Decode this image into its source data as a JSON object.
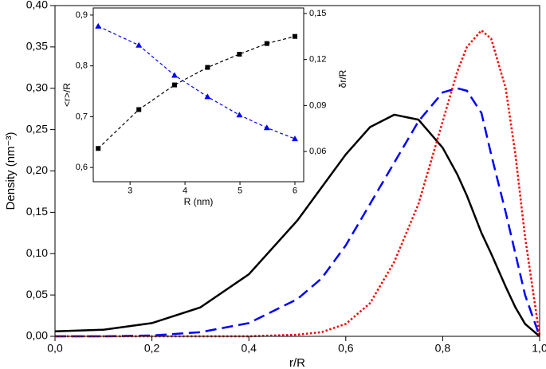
{
  "chart_data": [
    {
      "type": "line",
      "xlabel": "r/R",
      "ylabel": "Density (nm⁻³)",
      "xlim": [
        0,
        1
      ],
      "ylim": [
        0,
        0.4
      ],
      "xticks": [
        {
          "value": 0,
          "label": "0,0"
        },
        {
          "value": 0.2,
          "label": "0,2"
        },
        {
          "value": 0.4,
          "label": "0,4"
        },
        {
          "value": 0.6,
          "label": "0,6"
        },
        {
          "value": 0.8,
          "label": "0,8"
        },
        {
          "value": 1,
          "label": "1,0"
        }
      ],
      "yticks": [
        {
          "value": 0,
          "label": "0,00"
        },
        {
          "value": 0.05,
          "label": "0,05"
        },
        {
          "value": 0.1,
          "label": "0,10"
        },
        {
          "value": 0.15,
          "label": "0,15"
        },
        {
          "value": 0.2,
          "label": "0,20"
        },
        {
          "value": 0.25,
          "label": "0,25"
        },
        {
          "value": 0.3,
          "label": "0,30"
        },
        {
          "value": 0.35,
          "label": "0,35"
        },
        {
          "value": 0.4,
          "label": "0,40"
        }
      ],
      "x": [
        0,
        0.1,
        0.2,
        0.3,
        0.4,
        0.5,
        0.55,
        0.6,
        0.65,
        0.7,
        0.75,
        0.8,
        0.83,
        0.85,
        0.88,
        0.9,
        0.93,
        0.95,
        0.97,
        1.0
      ],
      "series": [
        {
          "color": "#000000",
          "style": "solid",
          "values": [
            0.006,
            0.008,
            0.016,
            0.035,
            0.075,
            0.14,
            0.18,
            0.22,
            0.253,
            0.268,
            0.262,
            0.228,
            0.196,
            0.17,
            0.125,
            0.1,
            0.06,
            0.035,
            0.015,
            0
          ]
        },
        {
          "color": "#0000ff",
          "style": "dashed",
          "values": [
            0,
            0,
            0.001,
            0.005,
            0.016,
            0.045,
            0.07,
            0.11,
            0.16,
            0.21,
            0.26,
            0.295,
            0.3,
            0.297,
            0.27,
            0.22,
            0.15,
            0.1,
            0.05,
            0
          ]
        },
        {
          "color": "#ff0000",
          "style": "dotted",
          "values": [
            0,
            0,
            0,
            0,
            0,
            0.002,
            0.005,
            0.015,
            0.04,
            0.09,
            0.16,
            0.26,
            0.32,
            0.35,
            0.37,
            0.36,
            0.3,
            0.22,
            0.12,
            0
          ]
        }
      ]
    },
    {
      "type": "line",
      "xlabel": "R (nm)",
      "ylabel": "<r>/R",
      "y2label": "δr/R",
      "xlim": [
        2.33,
        6.16
      ],
      "ylim": [
        0.572,
        0.914
      ],
      "y2lim": [
        0.0403,
        0.1536
      ],
      "xticks": [
        3,
        4,
        5,
        6
      ],
      "yticks": [
        {
          "value": 0.6,
          "label": "0,6"
        },
        {
          "value": 0.7,
          "label": "0,7"
        },
        {
          "value": 0.8,
          "label": "0,8"
        },
        {
          "value": 0.9,
          "label": "0,9"
        }
      ],
      "y2ticks": [
        {
          "value": 0.06,
          "label": "0,06"
        },
        {
          "value": 0.09,
          "label": "0,09"
        },
        {
          "value": 0.12,
          "label": "0,12"
        },
        {
          "value": 0.15,
          "label": "0,15"
        }
      ],
      "x": [
        2.42,
        3.16,
        3.81,
        4.41,
        4.99,
        5.49,
        6.0
      ],
      "series": [
        {
          "color": "#000000",
          "style": "dashed",
          "marker": "square",
          "values": [
            0.6375,
            0.714,
            0.7625,
            0.797,
            0.823,
            0.844,
            0.858
          ]
        },
        {
          "color": "#0000ff",
          "style": "dashed",
          "marker": "triangle",
          "axis": "y2",
          "values": [
            0.1417,
            0.1293,
            0.1097,
            0.0957,
            0.0838,
            0.0755,
            0.0683
          ]
        }
      ]
    }
  ]
}
